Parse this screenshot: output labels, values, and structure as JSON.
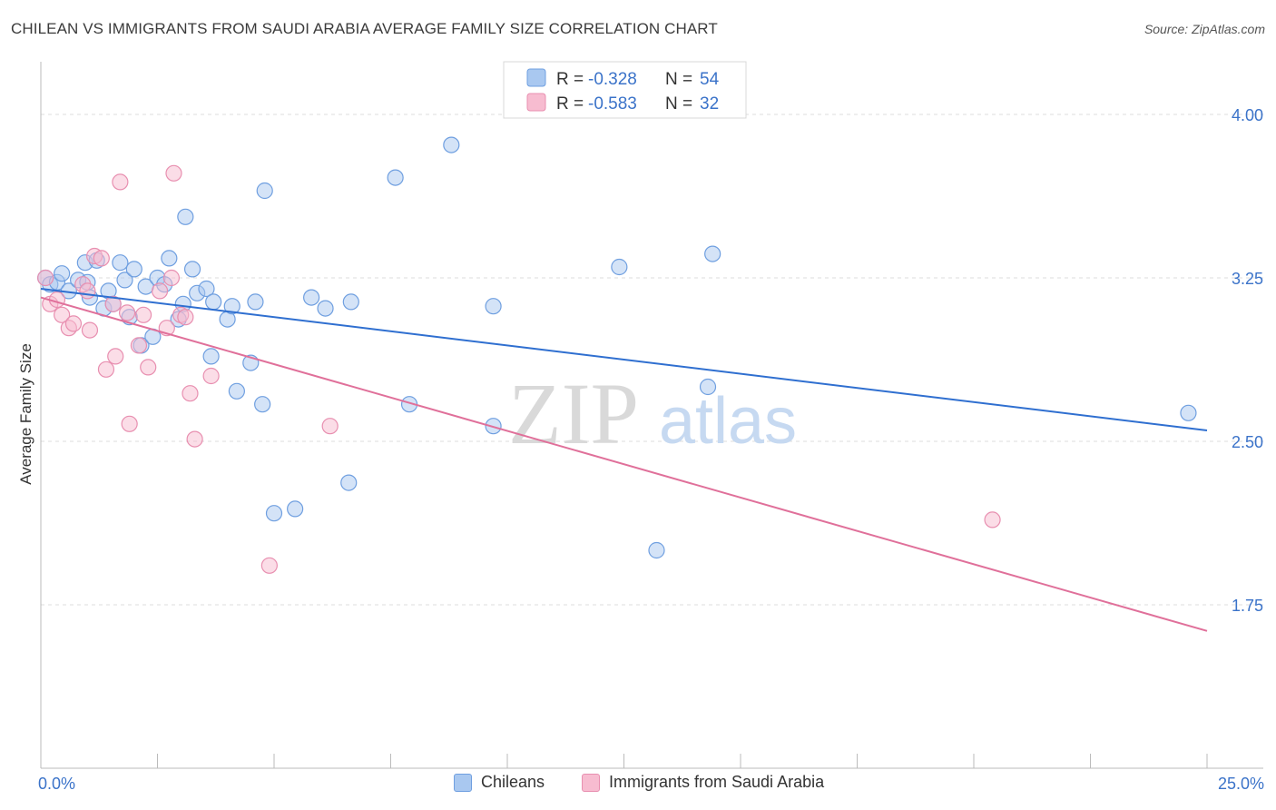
{
  "header": {
    "title": "CHILEAN VS IMMIGRANTS FROM SAUDI ARABIA AVERAGE FAMILY SIZE CORRELATION CHART",
    "source": "Source: ZipAtlas.com"
  },
  "colors": {
    "blue_fill": "#a9c8f0",
    "blue_stroke": "#6f9fe0",
    "blue_line": "#2f6fd0",
    "pink_fill": "#f7bcd0",
    "pink_stroke": "#e88fb0",
    "pink_line": "#e0709a",
    "axis_text": "#3b73c9",
    "grid": "#dddddd"
  },
  "watermark": {
    "zip": "ZIP",
    "atlas": "atlas"
  },
  "legend": {
    "r_label": "R =",
    "n_label": "N =",
    "rows": [
      {
        "r": "-0.328",
        "n": "54"
      },
      {
        "r": "-0.583",
        "n": "32"
      }
    ]
  },
  "chart_data": {
    "type": "scatter",
    "title": "CHILEAN VS IMMIGRANTS FROM SAUDI ARABIA AVERAGE FAMILY SIZE CORRELATION CHART",
    "xlabel": "",
    "ylabel": "Average Family Size",
    "xlim": [
      0,
      25
    ],
    "ylim": [
      1.0,
      4.2
    ],
    "x_tick_labels": [
      "0.0%",
      "25.0%"
    ],
    "y_ticks": [
      4.0,
      3.25,
      2.5,
      1.75
    ],
    "y_tick_labels": [
      "4.00",
      "3.25",
      "2.50",
      "1.75"
    ],
    "grid": true,
    "legend_position": "top-center",
    "series": [
      {
        "name": "Chileans",
        "r": -0.328,
        "n": 54,
        "trend": [
          [
            0,
            3.2
          ],
          [
            25,
            2.55
          ]
        ],
        "points": [
          [
            0.1,
            3.25
          ],
          [
            0.2,
            3.22
          ],
          [
            0.35,
            3.23
          ],
          [
            0.45,
            3.27
          ],
          [
            0.6,
            3.19
          ],
          [
            0.8,
            3.24
          ],
          [
            0.95,
            3.32
          ],
          [
            1.05,
            3.16
          ],
          [
            1.2,
            3.33
          ],
          [
            1.35,
            3.11
          ],
          [
            1.45,
            3.19
          ],
          [
            1.55,
            3.13
          ],
          [
            1.7,
            3.32
          ],
          [
            1.8,
            3.24
          ],
          [
            1.9,
            3.07
          ],
          [
            2.0,
            3.29
          ],
          [
            2.15,
            2.94
          ],
          [
            2.25,
            3.21
          ],
          [
            2.4,
            2.98
          ],
          [
            2.5,
            3.25
          ],
          [
            2.65,
            3.22
          ],
          [
            2.75,
            3.34
          ],
          [
            2.95,
            3.06
          ],
          [
            3.05,
            3.13
          ],
          [
            3.1,
            3.53
          ],
          [
            3.25,
            3.29
          ],
          [
            3.35,
            3.18
          ],
          [
            3.55,
            3.2
          ],
          [
            3.65,
            2.89
          ],
          [
            3.7,
            3.14
          ],
          [
            4.0,
            3.06
          ],
          [
            4.1,
            3.12
          ],
          [
            4.2,
            2.73
          ],
          [
            4.5,
            2.86
          ],
          [
            4.6,
            3.14
          ],
          [
            4.75,
            2.67
          ],
          [
            4.8,
            3.65
          ],
          [
            5.0,
            2.17
          ],
          [
            5.45,
            2.19
          ],
          [
            5.8,
            3.16
          ],
          [
            6.1,
            3.11
          ],
          [
            6.6,
            2.31
          ],
          [
            6.65,
            3.14
          ],
          [
            7.6,
            3.71
          ],
          [
            7.9,
            2.67
          ],
          [
            8.8,
            3.86
          ],
          [
            9.7,
            3.12
          ],
          [
            9.7,
            2.57
          ],
          [
            12.4,
            3.3
          ],
          [
            13.2,
            2.0
          ],
          [
            14.3,
            2.75
          ],
          [
            14.4,
            3.36
          ],
          [
            24.6,
            2.63
          ],
          [
            1.0,
            3.23
          ]
        ]
      },
      {
        "name": "Immigrants from Saudi Arabia",
        "r": -0.583,
        "n": 32,
        "trend": [
          [
            0,
            3.16
          ],
          [
            25,
            1.63
          ]
        ],
        "points": [
          [
            0.1,
            3.25
          ],
          [
            0.2,
            3.13
          ],
          [
            0.35,
            3.15
          ],
          [
            0.45,
            3.08
          ],
          [
            0.6,
            3.02
          ],
          [
            0.7,
            3.04
          ],
          [
            0.9,
            3.22
          ],
          [
            1.0,
            3.19
          ],
          [
            1.05,
            3.01
          ],
          [
            1.15,
            3.35
          ],
          [
            1.3,
            3.34
          ],
          [
            1.4,
            2.83
          ],
          [
            1.55,
            3.13
          ],
          [
            1.6,
            2.89
          ],
          [
            1.7,
            3.69
          ],
          [
            1.85,
            3.09
          ],
          [
            1.9,
            2.58
          ],
          [
            2.1,
            2.94
          ],
          [
            2.2,
            3.08
          ],
          [
            2.3,
            2.84
          ],
          [
            2.55,
            3.19
          ],
          [
            2.7,
            3.02
          ],
          [
            2.8,
            3.25
          ],
          [
            2.85,
            3.73
          ],
          [
            3.0,
            3.08
          ],
          [
            3.1,
            3.07
          ],
          [
            3.2,
            2.72
          ],
          [
            3.3,
            2.51
          ],
          [
            3.65,
            2.8
          ],
          [
            4.9,
            1.93
          ],
          [
            6.2,
            2.57
          ],
          [
            20.4,
            2.14
          ]
        ]
      }
    ]
  }
}
